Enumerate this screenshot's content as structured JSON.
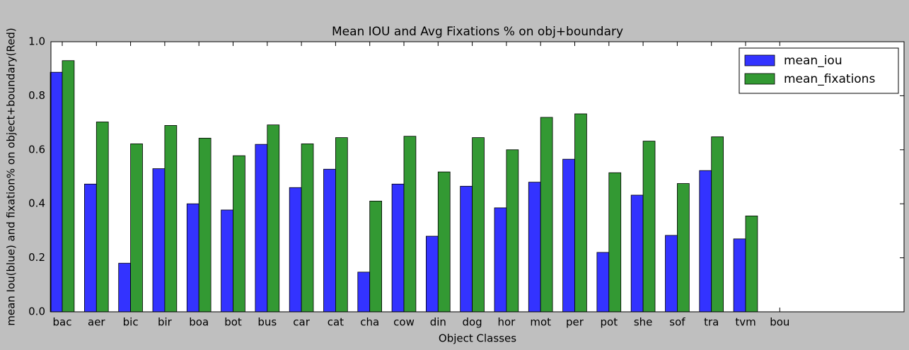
{
  "chart_data": {
    "type": "bar",
    "title": "Mean IOU and Avg Fixations % on obj+boundary",
    "x_label": "Object Classes",
    "y_label": "mean Iou(blue) and fixation% on object+boundary(Red)",
    "categories": [
      "bac",
      "aer",
      "bic",
      "bir",
      "boa",
      "bot",
      "bus",
      "car",
      "cat",
      "cha",
      "cow",
      "din",
      "dog",
      "hor",
      "mot",
      "per",
      "pot",
      "she",
      "sof",
      "tra",
      "tvm",
      "bou"
    ],
    "series": [
      {
        "name": "mean_iou",
        "color": "#3333ff",
        "values": [
          0.887,
          0.473,
          0.18,
          0.53,
          0.4,
          0.377,
          0.62,
          0.46,
          0.528,
          0.147,
          0.473,
          0.28,
          0.465,
          0.385,
          0.48,
          0.565,
          0.22,
          0.432,
          0.283,
          0.523,
          0.27,
          null
        ]
      },
      {
        "name": "mean_fixations",
        "color": "#339933",
        "values": [
          0.93,
          0.703,
          0.622,
          0.69,
          0.643,
          0.578,
          0.692,
          0.622,
          0.645,
          0.41,
          0.65,
          0.518,
          0.645,
          0.6,
          0.72,
          0.733,
          0.515,
          0.632,
          0.475,
          0.648,
          0.355,
          null
        ]
      }
    ],
    "ylim": [
      0,
      1
    ],
    "yticks": [
      {
        "value": 0,
        "label": "0.0"
      },
      0.2,
      0.4,
      0.6,
      0.8,
      {
        "value": 1,
        "label": "1.0"
      }
    ],
    "legend": "upper right"
  }
}
